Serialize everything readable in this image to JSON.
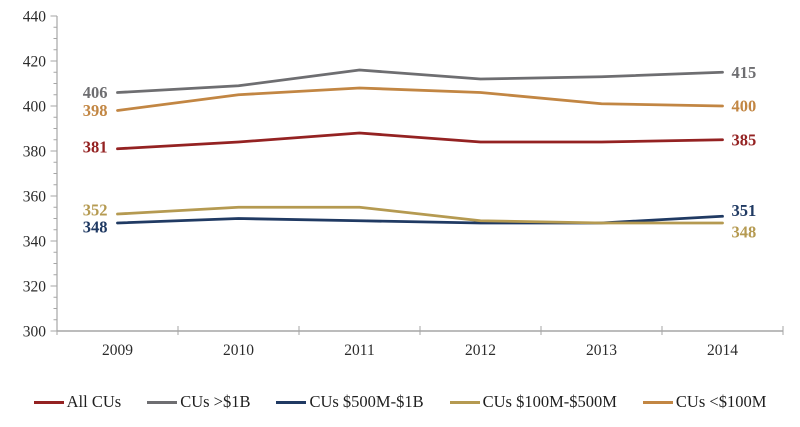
{
  "chart_data": {
    "type": "line",
    "title": "",
    "xlabel": "",
    "ylabel": "",
    "x_categories": [
      "2009",
      "2010",
      "2011",
      "2012",
      "2013",
      "2014"
    ],
    "series": [
      {
        "name": "All CUs",
        "color": "#942222",
        "values": [
          381,
          384,
          388,
          384,
          384,
          385
        ],
        "first_label": "381",
        "last_label": "385"
      },
      {
        "name": "CUs >$1B",
        "color": "#6E6E71",
        "values": [
          406,
          409,
          416,
          412,
          413,
          415
        ],
        "first_label": "406",
        "last_label": "415"
      },
      {
        "name": "CUs $500M-$1B",
        "color": "#203A63",
        "values": [
          348,
          350,
          349,
          348,
          348,
          351
        ],
        "first_label": "348",
        "last_label": "351"
      },
      {
        "name": "CUs $100M-$500M",
        "color": "#B59A51",
        "values": [
          352,
          355,
          355,
          349,
          348,
          348
        ],
        "first_label": "352",
        "last_label": "348"
      },
      {
        "name": "CUs <$100M",
        "color": "#C28643",
        "values": [
          398,
          405,
          408,
          406,
          401,
          400
        ],
        "first_label": "398",
        "last_label": "400"
      }
    ],
    "y_axis": {
      "min": 300,
      "max": 440,
      "major_step": 20,
      "minor_step": 5,
      "tick_labels": [
        "300",
        "320",
        "340",
        "360",
        "380",
        "400",
        "420",
        "440"
      ]
    },
    "legend_position": "bottom",
    "grid": false,
    "axis_color": "#A6A6A6",
    "text_color": "#2B2B2B"
  }
}
